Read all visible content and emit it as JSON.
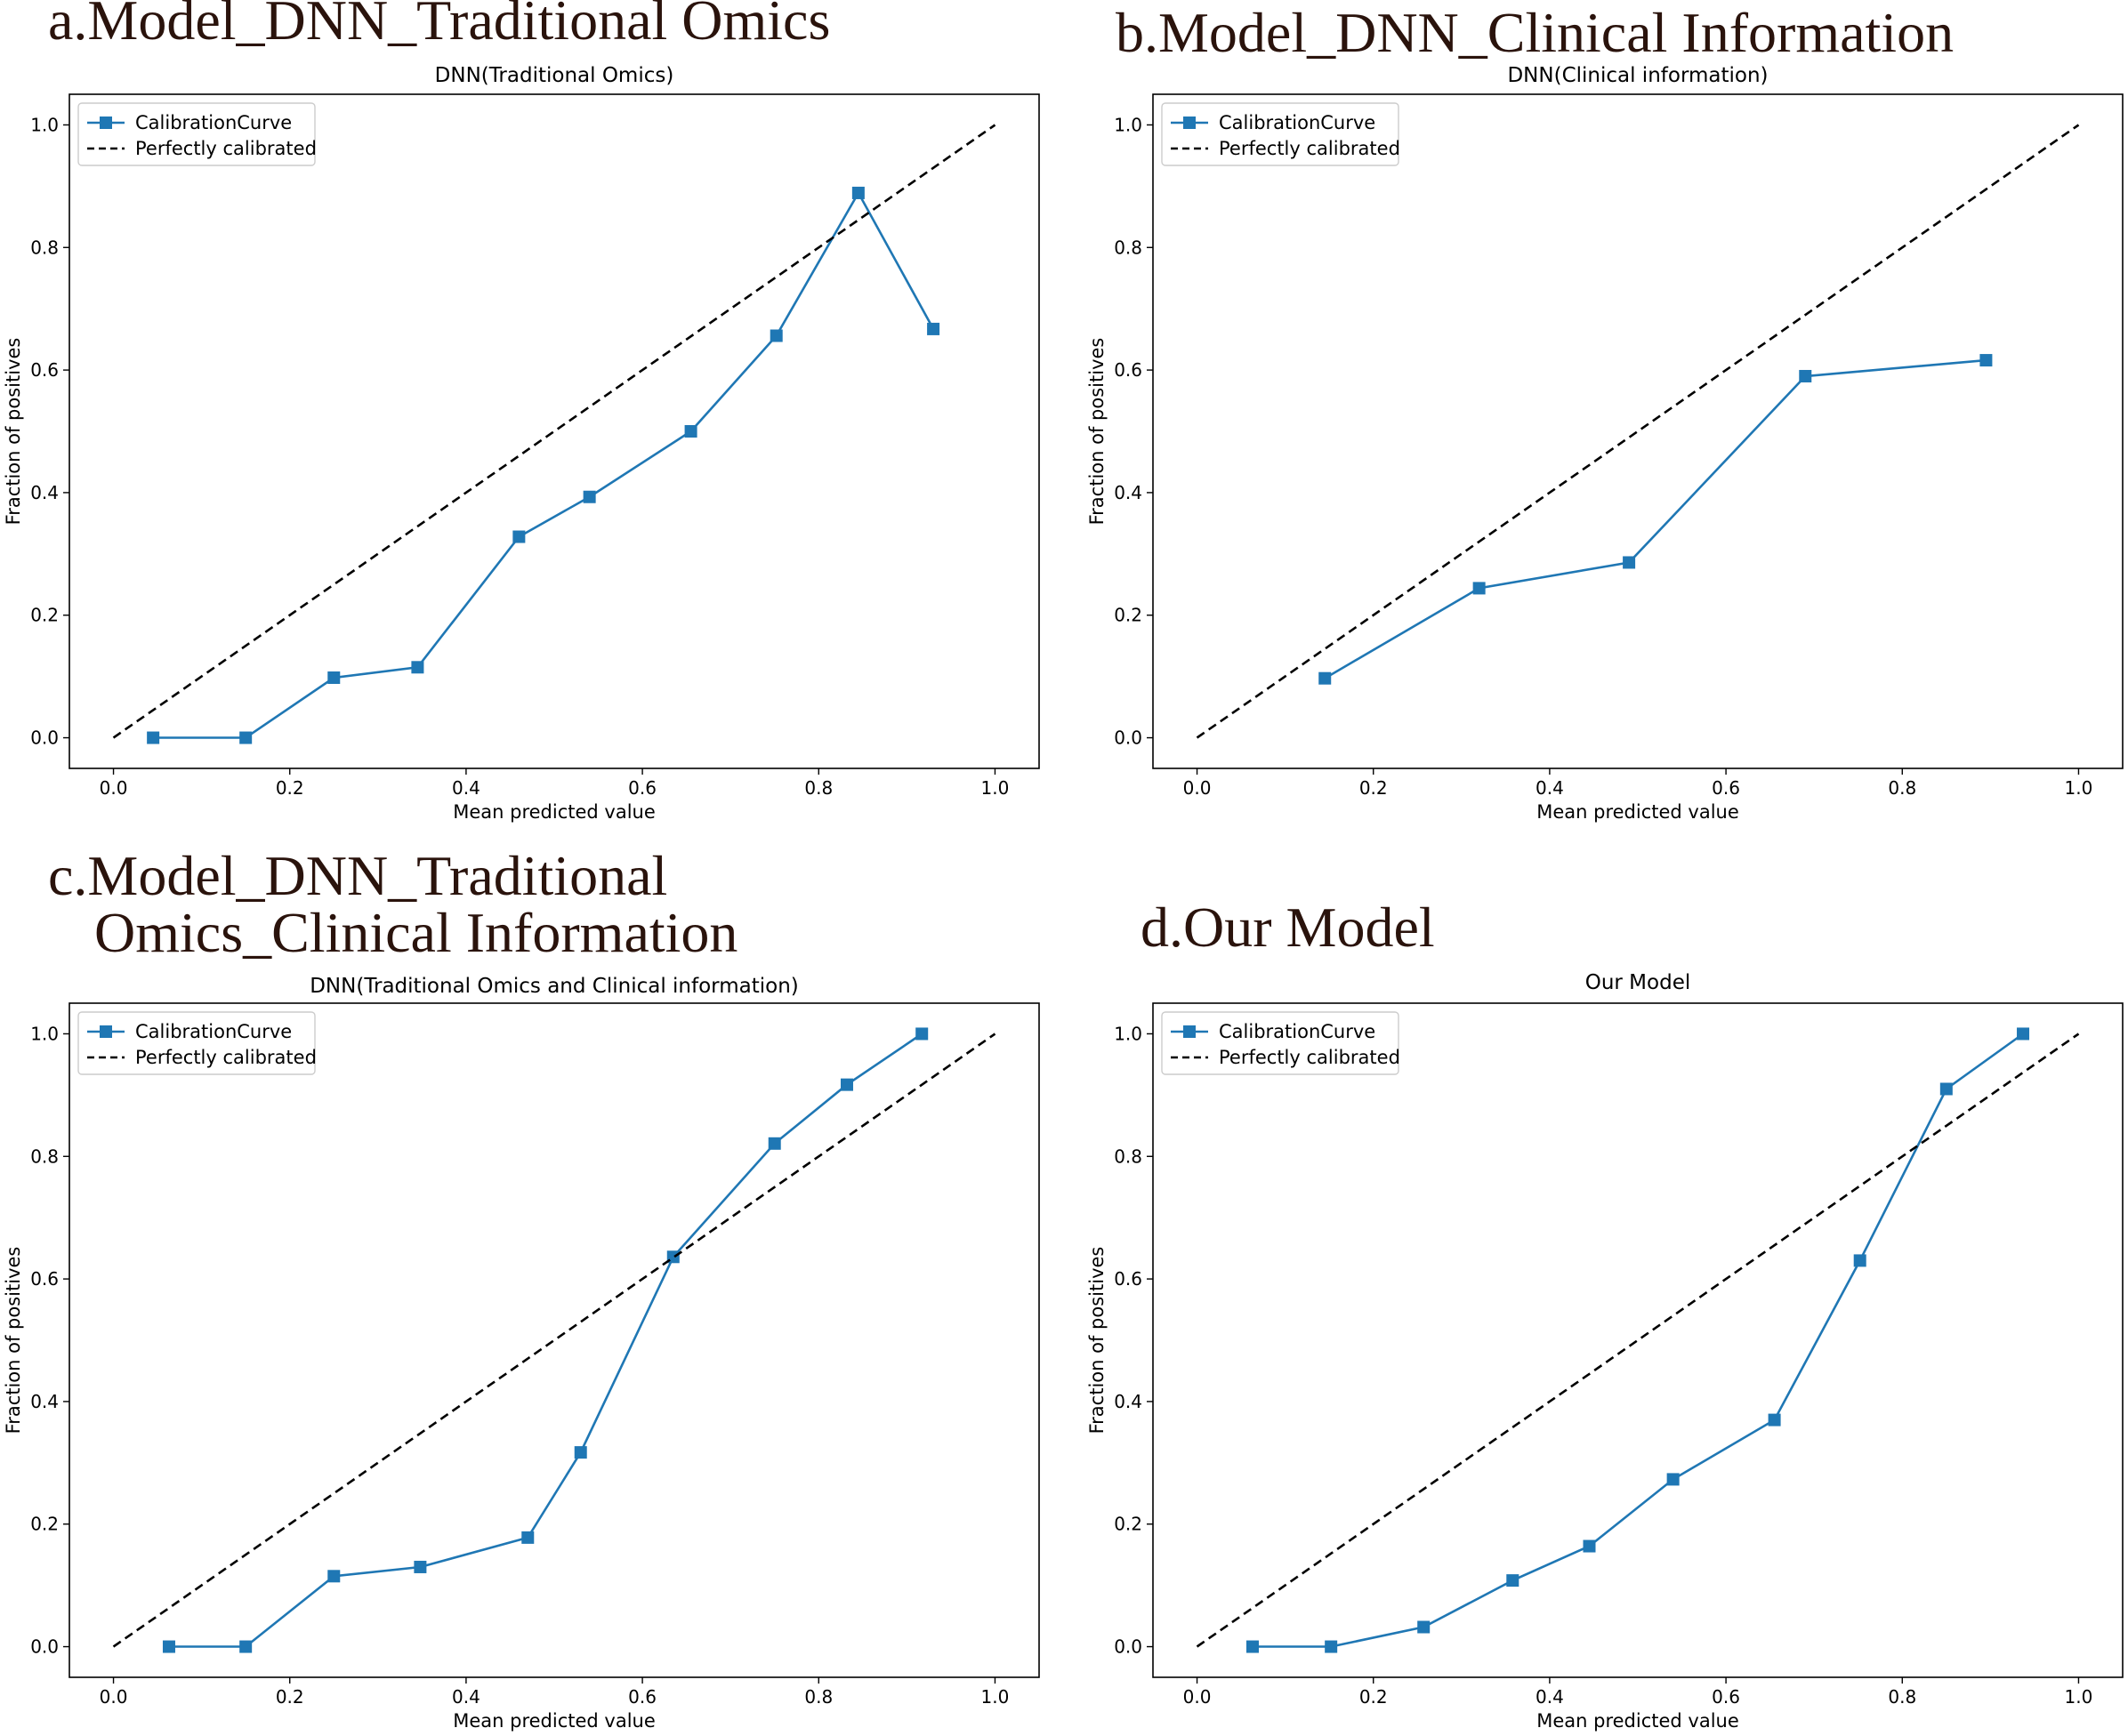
{
  "colors": {
    "series": "#1f77b4",
    "reference": "#000000",
    "heading": "#2a130c"
  },
  "chart_data": [
    {
      "type": "line",
      "panel_heading": [
        "a.Model_DNN_Traditional Omics"
      ],
      "title": "DNN(Traditional Omics)",
      "xlabel": "Mean predicted value",
      "ylabel": "Fraction of positives",
      "xlim": [
        -0.05,
        1.05
      ],
      "ylim": [
        -0.05,
        1.05
      ],
      "xticks": [
        "0.0",
        "0.2",
        "0.4",
        "0.6",
        "0.8",
        "1.0"
      ],
      "yticks": [
        "0.0",
        "0.2",
        "0.4",
        "0.6",
        "0.8",
        "1.0"
      ],
      "legend_position": "top-left",
      "series": [
        {
          "name": "CalibrationCurve",
          "marker": "square",
          "x": [
            0.045,
            0.15,
            0.25,
            0.345,
            0.46,
            0.54,
            0.655,
            0.752,
            0.845,
            0.93
          ],
          "y": [
            0.0,
            0.0,
            0.098,
            0.115,
            0.328,
            0.393,
            0.5,
            0.656,
            0.889,
            0.667
          ]
        },
        {
          "name": "Perfectly calibrated",
          "dashed": true,
          "x": [
            0,
            1
          ],
          "y": [
            0,
            1
          ]
        }
      ]
    },
    {
      "type": "line",
      "panel_heading": [
        "b.Model_DNN_Clinical Information"
      ],
      "title": "DNN(Clinical information)",
      "xlabel": "Mean predicted value",
      "ylabel": "Fraction of positives",
      "xlim": [
        -0.05,
        1.05
      ],
      "ylim": [
        -0.05,
        1.05
      ],
      "xticks": [
        "0.0",
        "0.2",
        "0.4",
        "0.6",
        "0.8",
        "1.0"
      ],
      "yticks": [
        "0.0",
        "0.2",
        "0.4",
        "0.6",
        "0.8",
        "1.0"
      ],
      "legend_position": "top-left",
      "series": [
        {
          "name": "CalibrationCurve",
          "marker": "square",
          "x": [
            0.145,
            0.32,
            0.49,
            0.69,
            0.895
          ],
          "y": [
            0.097,
            0.244,
            0.286,
            0.59,
            0.616
          ]
        },
        {
          "name": "Perfectly calibrated",
          "dashed": true,
          "x": [
            0,
            1
          ],
          "y": [
            0,
            1
          ]
        }
      ]
    },
    {
      "type": "line",
      "panel_heading": [
        "c.Model_DNN_Traditional",
        "Omics_Clinical Information"
      ],
      "title": "DNN(Traditional Omics and Clinical information)",
      "xlabel": "Mean predicted value",
      "ylabel": "Fraction of positives",
      "xlim": [
        -0.05,
        1.05
      ],
      "ylim": [
        -0.05,
        1.05
      ],
      "xticks": [
        "0.0",
        "0.2",
        "0.4",
        "0.6",
        "0.8",
        "1.0"
      ],
      "yticks": [
        "0.0",
        "0.2",
        "0.4",
        "0.6",
        "0.8",
        "1.0"
      ],
      "legend_position": "top-left",
      "series": [
        {
          "name": "CalibrationCurve",
          "marker": "square",
          "x": [
            0.063,
            0.15,
            0.25,
            0.348,
            0.47,
            0.53,
            0.635,
            0.75,
            0.832,
            0.917
          ],
          "y": [
            0.0,
            0.0,
            0.115,
            0.13,
            0.178,
            0.317,
            0.636,
            0.821,
            0.917,
            1.0
          ]
        },
        {
          "name": "Perfectly calibrated",
          "dashed": true,
          "x": [
            0,
            1
          ],
          "y": [
            0,
            1
          ]
        }
      ]
    },
    {
      "type": "line",
      "panel_heading": [
        "d.Our Model"
      ],
      "title": "Our Model",
      "xlabel": "Mean predicted value",
      "ylabel": "Fraction of positives",
      "xlim": [
        -0.05,
        1.05
      ],
      "ylim": [
        -0.05,
        1.05
      ],
      "xticks": [
        "0.0",
        "0.2",
        "0.4",
        "0.6",
        "0.8",
        "1.0"
      ],
      "yticks": [
        "0.0",
        "0.2",
        "0.4",
        "0.6",
        "0.8",
        "1.0"
      ],
      "legend_position": "top-left",
      "series": [
        {
          "name": "CalibrationCurve",
          "marker": "square",
          "x": [
            0.063,
            0.152,
            0.257,
            0.358,
            0.445,
            0.54,
            0.655,
            0.752,
            0.85,
            0.937
          ],
          "y": [
            0.0,
            0.0,
            0.032,
            0.108,
            0.164,
            0.273,
            0.37,
            0.63,
            0.91,
            1.0
          ]
        },
        {
          "name": "Perfectly calibrated",
          "dashed": true,
          "x": [
            0,
            1
          ],
          "y": [
            0,
            1
          ]
        }
      ]
    }
  ]
}
